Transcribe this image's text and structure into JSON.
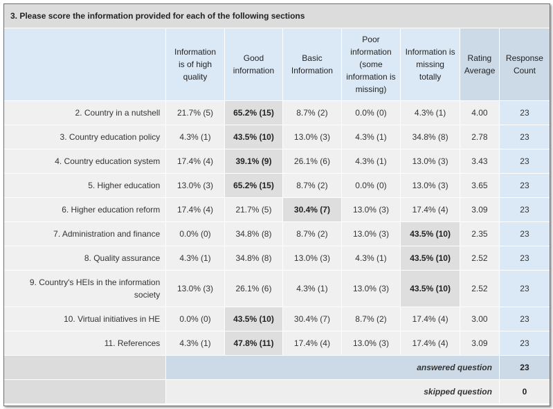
{
  "question_title": "3. Please score the information provided for each of the following sections",
  "columns": [
    "Information is of high quality",
    "Good information",
    "Basic Information",
    "Poor information (some information is missing)",
    "Information is missing totally",
    "Rating Average",
    "Response Count"
  ],
  "rows": [
    {
      "label": "2. Country in a nutshell",
      "cells": [
        "21.7% (5)",
        "65.2% (15)",
        "8.7% (2)",
        "0.0% (0)",
        "4.3% (1)"
      ],
      "highlight": 1,
      "avg": "4.00",
      "count": "23"
    },
    {
      "label": "3. Country education policy",
      "cells": [
        "4.3% (1)",
        "43.5% (10)",
        "13.0% (3)",
        "4.3% (1)",
        "34.8% (8)"
      ],
      "highlight": 1,
      "avg": "2.78",
      "count": "23"
    },
    {
      "label": "4. Country education system",
      "cells": [
        "17.4% (4)",
        "39.1% (9)",
        "26.1% (6)",
        "4.3% (1)",
        "13.0% (3)"
      ],
      "highlight": 1,
      "avg": "3.43",
      "count": "23"
    },
    {
      "label": "5. Higher education",
      "cells": [
        "13.0% (3)",
        "65.2% (15)",
        "8.7% (2)",
        "0.0% (0)",
        "13.0% (3)"
      ],
      "highlight": 1,
      "avg": "3.65",
      "count": "23"
    },
    {
      "label": "6. Higher education reform",
      "cells": [
        "17.4% (4)",
        "21.7% (5)",
        "30.4% (7)",
        "13.0% (3)",
        "17.4% (4)"
      ],
      "highlight": 2,
      "avg": "3.09",
      "count": "23"
    },
    {
      "label": "7. Administration and finance",
      "cells": [
        "0.0% (0)",
        "34.8% (8)",
        "8.7% (2)",
        "13.0% (3)",
        "43.5% (10)"
      ],
      "highlight": 4,
      "avg": "2.35",
      "count": "23"
    },
    {
      "label": "8. Quality assurance",
      "cells": [
        "4.3% (1)",
        "34.8% (8)",
        "13.0% (3)",
        "4.3% (1)",
        "43.5% (10)"
      ],
      "highlight": 4,
      "avg": "2.52",
      "count": "23"
    },
    {
      "label": "9. Country's HEIs in the information society",
      "cells": [
        "13.0% (3)",
        "26.1% (6)",
        "4.3% (1)",
        "13.0% (3)",
        "43.5% (10)"
      ],
      "highlight": 4,
      "avg": "2.52",
      "count": "23"
    },
    {
      "label": "10. Virtual initiatives in HE",
      "cells": [
        "0.0% (0)",
        "43.5% (10)",
        "30.4% (7)",
        "8.7% (2)",
        "17.4% (4)"
      ],
      "highlight": 1,
      "avg": "3.00",
      "count": "23"
    },
    {
      "label": "11. References",
      "cells": [
        "4.3% (1)",
        "47.8% (11)",
        "17.4% (4)",
        "13.0% (3)",
        "17.4% (4)"
      ],
      "highlight": 1,
      "avg": "3.09",
      "count": "23"
    }
  ],
  "footer": {
    "answered_label": "answered question",
    "answered_value": "23",
    "skipped_label": "skipped question",
    "skipped_value": "0"
  }
}
